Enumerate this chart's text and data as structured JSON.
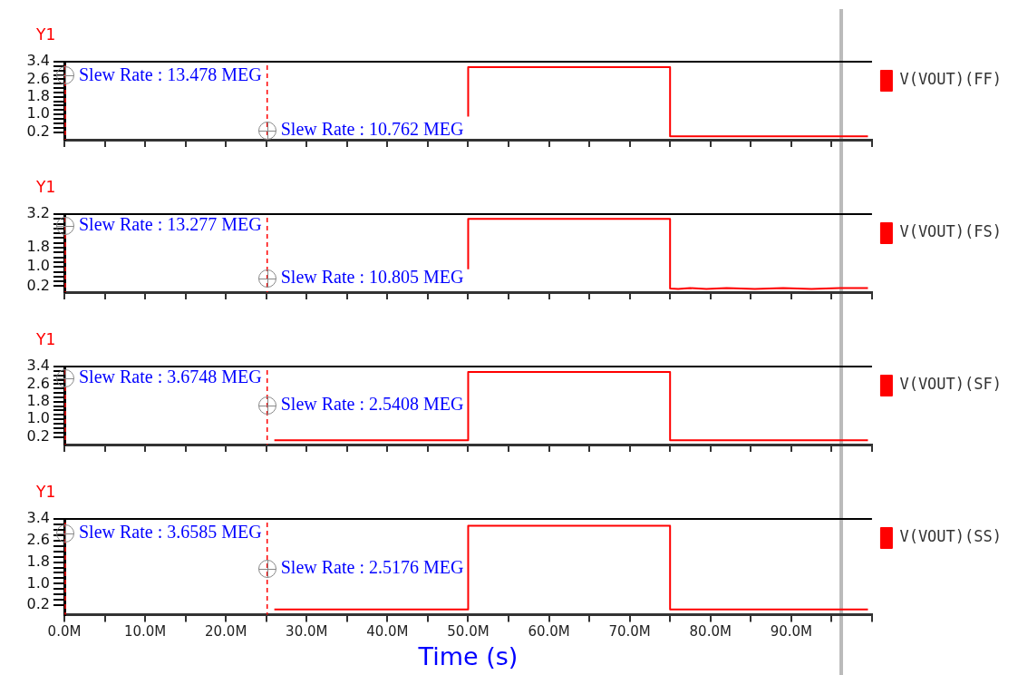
{
  "chart_data": [
    {
      "type": "line",
      "ylabel": "Y1",
      "legend": "top right",
      "marker": "none",
      "line_style": "solid",
      "grid": false,
      "tick_labels": "y",
      "xlim": [
        0,
        100
      ],
      "xticks": [
        {
          "value": 0,
          "label": null
        },
        {
          "value": 5,
          "label": null
        },
        {
          "value": 10,
          "label": null
        },
        {
          "value": 15,
          "label": null
        },
        {
          "value": 20,
          "label": null
        },
        {
          "value": 25,
          "label": null
        },
        {
          "value": 30,
          "label": null
        },
        {
          "value": 35,
          "label": null
        },
        {
          "value": 40,
          "label": null
        },
        {
          "value": 45,
          "label": null
        },
        {
          "value": 50,
          "label": null
        },
        {
          "value": 55,
          "label": null
        },
        {
          "value": 60,
          "label": null
        },
        {
          "value": 65,
          "label": null
        },
        {
          "value": 70,
          "label": null
        },
        {
          "value": 75,
          "label": null
        },
        {
          "value": 80,
          "label": null
        },
        {
          "value": 85,
          "label": null
        },
        {
          "value": 90,
          "label": null
        },
        {
          "value": 95,
          "label": null
        },
        {
          "value": 100,
          "label": null
        }
      ],
      "ylim": [
        -0.15,
        3.4
      ],
      "yticks": [
        {
          "value": 0.2,
          "label": "0.2"
        },
        {
          "value": 0.4,
          "label": null
        },
        {
          "value": 0.6,
          "label": null
        },
        {
          "value": 0.8,
          "label": null
        },
        {
          "value": 1.0,
          "label": "1.0"
        },
        {
          "value": 1.2,
          "label": null
        },
        {
          "value": 1.4,
          "label": null
        },
        {
          "value": 1.6,
          "label": null
        },
        {
          "value": 1.8,
          "label": "1.8"
        },
        {
          "value": 2.0,
          "label": null
        },
        {
          "value": 2.2,
          "label": null
        },
        {
          "value": 2.4,
          "label": null
        },
        {
          "value": 2.6,
          "label": "2.6"
        },
        {
          "value": 2.8,
          "label": null
        },
        {
          "value": 3.0,
          "label": null
        },
        {
          "value": 3.2,
          "label": null
        },
        {
          "value": 3.4,
          "label": "3.4"
        }
      ],
      "series": [
        {
          "name": "V(VOUT)(FF)",
          "color": "#ff0000",
          "x": [
            50,
            50,
            75,
            75,
            99.5
          ],
          "values": [
            0.9,
            3.15,
            3.15,
            0.0,
            0.0
          ]
        }
      ],
      "ref_lines": [
        {
          "axis": "x",
          "value": 0,
          "color": "#ff0000",
          "line_style": "dashed"
        },
        {
          "axis": "x",
          "value": 25,
          "color": "#ff0000",
          "line_style": "dashed"
        }
      ],
      "annotations": [
        "Slew Rate : 13.478 MEG",
        "Slew Rate : 10.762 MEG"
      ]
    },
    {
      "type": "line",
      "ylabel": "Y1",
      "legend": "top right",
      "marker": "none",
      "line_style": "solid",
      "grid": false,
      "tick_labels": "y",
      "xlim": [
        0,
        100
      ],
      "xticks": [
        {
          "value": 0,
          "label": null
        },
        {
          "value": 5,
          "label": null
        },
        {
          "value": 10,
          "label": null
        },
        {
          "value": 15,
          "label": null
        },
        {
          "value": 20,
          "label": null
        },
        {
          "value": 25,
          "label": null
        },
        {
          "value": 30,
          "label": null
        },
        {
          "value": 35,
          "label": null
        },
        {
          "value": 40,
          "label": null
        },
        {
          "value": 45,
          "label": null
        },
        {
          "value": 50,
          "label": null
        },
        {
          "value": 55,
          "label": null
        },
        {
          "value": 60,
          "label": null
        },
        {
          "value": 65,
          "label": null
        },
        {
          "value": 70,
          "label": null
        },
        {
          "value": 75,
          "label": null
        },
        {
          "value": 80,
          "label": null
        },
        {
          "value": 85,
          "label": null
        },
        {
          "value": 90,
          "label": null
        },
        {
          "value": 95,
          "label": null
        },
        {
          "value": 100,
          "label": null
        }
      ],
      "ylim": [
        -0.05,
        3.2
      ],
      "yticks": [
        {
          "value": 0.2,
          "label": "0.2"
        },
        {
          "value": 0.4,
          "label": null
        },
        {
          "value": 0.6,
          "label": null
        },
        {
          "value": 0.8,
          "label": null
        },
        {
          "value": 1.0,
          "label": "1.0"
        },
        {
          "value": 1.2,
          "label": null
        },
        {
          "value": 1.4,
          "label": null
        },
        {
          "value": 1.6,
          "label": null
        },
        {
          "value": 1.8,
          "label": "1.8"
        },
        {
          "value": 2.0,
          "label": null
        },
        {
          "value": 2.2,
          "label": null
        },
        {
          "value": 2.4,
          "label": null
        },
        {
          "value": 2.6,
          "label": null
        },
        {
          "value": 2.8,
          "label": null
        },
        {
          "value": 3.0,
          "label": null
        },
        {
          "value": 3.2,
          "label": "3.2"
        }
      ],
      "series": [
        {
          "name": "V(VOUT)(FS)",
          "color": "#ff0000",
          "x": [
            50,
            50,
            75,
            75,
            76,
            77.5,
            79.5,
            82,
            85.5,
            89,
            92.5,
            96,
            99.5
          ],
          "values": [
            0.9,
            3.0,
            3.0,
            0.1,
            0.08,
            0.12,
            0.08,
            0.12,
            0.08,
            0.12,
            0.08,
            0.12,
            0.12
          ]
        }
      ],
      "ref_lines": [
        {
          "axis": "x",
          "value": 0,
          "color": "#ff0000",
          "line_style": "dashed"
        },
        {
          "axis": "x",
          "value": 25,
          "color": "#ff0000",
          "line_style": "dashed"
        }
      ],
      "annotations": [
        "Slew Rate : 13.277 MEG",
        "Slew Rate : 10.805 MEG"
      ]
    },
    {
      "type": "line",
      "ylabel": "Y1",
      "legend": "top right",
      "marker": "none",
      "line_style": "solid",
      "grid": false,
      "tick_labels": "y",
      "xlim": [
        0,
        100
      ],
      "xticks": [
        {
          "value": 0,
          "label": null
        },
        {
          "value": 5,
          "label": null
        },
        {
          "value": 10,
          "label": null
        },
        {
          "value": 15,
          "label": null
        },
        {
          "value": 20,
          "label": null
        },
        {
          "value": 25,
          "label": null
        },
        {
          "value": 30,
          "label": null
        },
        {
          "value": 35,
          "label": null
        },
        {
          "value": 40,
          "label": null
        },
        {
          "value": 45,
          "label": null
        },
        {
          "value": 50,
          "label": null
        },
        {
          "value": 55,
          "label": null
        },
        {
          "value": 60,
          "label": null
        },
        {
          "value": 65,
          "label": null
        },
        {
          "value": 70,
          "label": null
        },
        {
          "value": 75,
          "label": null
        },
        {
          "value": 80,
          "label": null
        },
        {
          "value": 85,
          "label": null
        },
        {
          "value": 90,
          "label": null
        },
        {
          "value": 95,
          "label": null
        },
        {
          "value": 100,
          "label": null
        }
      ],
      "ylim": [
        -0.15,
        3.4
      ],
      "yticks": [
        {
          "value": 0.2,
          "label": "0.2"
        },
        {
          "value": 0.4,
          "label": null
        },
        {
          "value": 0.6,
          "label": null
        },
        {
          "value": 0.8,
          "label": null
        },
        {
          "value": 1.0,
          "label": "1.0"
        },
        {
          "value": 1.2,
          "label": null
        },
        {
          "value": 1.4,
          "label": null
        },
        {
          "value": 1.6,
          "label": null
        },
        {
          "value": 1.8,
          "label": "1.8"
        },
        {
          "value": 2.0,
          "label": null
        },
        {
          "value": 2.2,
          "label": null
        },
        {
          "value": 2.4,
          "label": null
        },
        {
          "value": 2.6,
          "label": "2.6"
        },
        {
          "value": 2.8,
          "label": null
        },
        {
          "value": 3.0,
          "label": null
        },
        {
          "value": 3.2,
          "label": null
        },
        {
          "value": 3.4,
          "label": "3.4"
        }
      ],
      "series": [
        {
          "name": "V(VOUT)(SF)",
          "color": "#ff0000",
          "x": [
            26,
            50,
            50,
            75,
            75,
            99.5
          ],
          "values": [
            0.05,
            0.05,
            3.15,
            3.15,
            0.05,
            0.05
          ]
        }
      ],
      "ref_lines": [
        {
          "axis": "x",
          "value": 0,
          "color": "#ff0000",
          "line_style": "dashed"
        },
        {
          "axis": "x",
          "value": 25,
          "color": "#ff0000",
          "line_style": "dashed"
        }
      ],
      "annotations": [
        "Slew Rate : 3.6748 MEG",
        "Slew Rate : 2.5408 MEG"
      ]
    },
    {
      "type": "line",
      "ylabel": "Y1",
      "xlabel": "Time (s)",
      "legend": "top right",
      "marker": "none",
      "line_style": "solid",
      "grid": false,
      "xlim": [
        0,
        100
      ],
      "xticks": [
        {
          "value": 0,
          "label": "0.0M"
        },
        {
          "value": 5,
          "label": null
        },
        {
          "value": 10,
          "label": "10.0M"
        },
        {
          "value": 15,
          "label": null
        },
        {
          "value": 20,
          "label": "20.0M"
        },
        {
          "value": 25,
          "label": null
        },
        {
          "value": 30,
          "label": "30.0M"
        },
        {
          "value": 35,
          "label": null
        },
        {
          "value": 40,
          "label": "40.0M"
        },
        {
          "value": 45,
          "label": null
        },
        {
          "value": 50,
          "label": "50.0M"
        },
        {
          "value": 55,
          "label": null
        },
        {
          "value": 60,
          "label": "60.0M"
        },
        {
          "value": 65,
          "label": null
        },
        {
          "value": 70,
          "label": "70.0M"
        },
        {
          "value": 75,
          "label": null
        },
        {
          "value": 80,
          "label": "80.0M"
        },
        {
          "value": 85,
          "label": null
        },
        {
          "value": 90,
          "label": "90.0M"
        },
        {
          "value": 95,
          "label": null
        },
        {
          "value": 100,
          "label": null
        }
      ],
      "ylim": [
        -0.15,
        3.4
      ],
      "yticks": [
        {
          "value": 0.2,
          "label": "0.2"
        },
        {
          "value": 0.4,
          "label": null
        },
        {
          "value": 0.6,
          "label": null
        },
        {
          "value": 0.8,
          "label": null
        },
        {
          "value": 1.0,
          "label": "1.0"
        },
        {
          "value": 1.2,
          "label": null
        },
        {
          "value": 1.4,
          "label": null
        },
        {
          "value": 1.6,
          "label": null
        },
        {
          "value": 1.8,
          "label": "1.8"
        },
        {
          "value": 2.0,
          "label": null
        },
        {
          "value": 2.2,
          "label": null
        },
        {
          "value": 2.4,
          "label": null
        },
        {
          "value": 2.6,
          "label": "2.6"
        },
        {
          "value": 2.8,
          "label": null
        },
        {
          "value": 3.0,
          "label": null
        },
        {
          "value": 3.2,
          "label": null
        },
        {
          "value": 3.4,
          "label": "3.4"
        }
      ],
      "series": [
        {
          "name": "V(VOUT)(SS)",
          "color": "#ff0000",
          "x": [
            26,
            50,
            50,
            75,
            75,
            99.5
          ],
          "values": [
            0.05,
            0.05,
            3.15,
            3.15,
            0.05,
            0.05
          ]
        }
      ],
      "ref_lines": [
        {
          "axis": "x",
          "value": 0,
          "color": "#ff0000",
          "line_style": "dashed"
        },
        {
          "axis": "x",
          "value": 25,
          "color": "#ff0000",
          "line_style": "dashed"
        }
      ],
      "annotations": [
        "Slew Rate : 3.6585 MEG",
        "Slew Rate : 2.5176 MEG"
      ]
    }
  ]
}
